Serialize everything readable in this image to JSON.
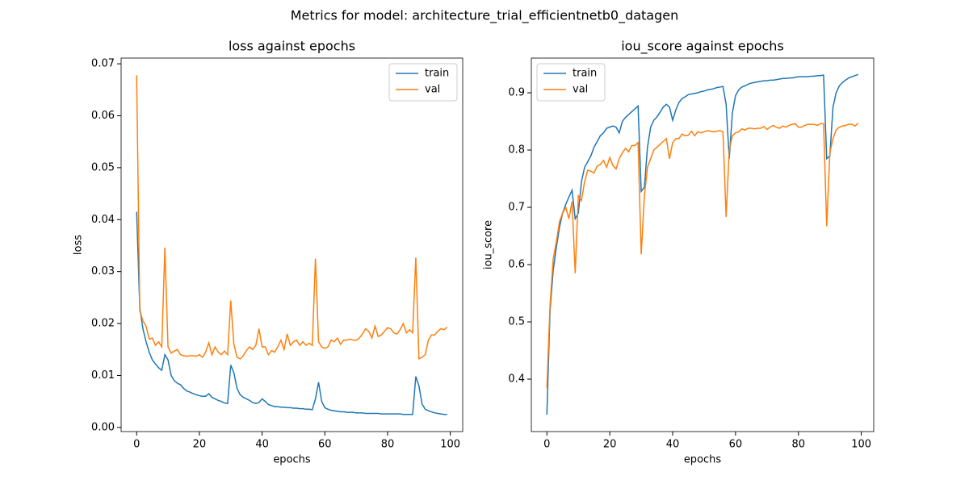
{
  "title": "Metrics for model: architecture_trial_efficientnetb0_datagen",
  "chart_data": [
    {
      "type": "line",
      "title": "loss against epochs",
      "xlabel": "epochs",
      "ylabel": "loss",
      "legend": "upper right",
      "x": [
        0,
        1,
        2,
        3,
        4,
        5,
        6,
        7,
        8,
        9,
        10,
        11,
        12,
        13,
        14,
        15,
        16,
        17,
        18,
        19,
        20,
        21,
        22,
        23,
        24,
        25,
        26,
        27,
        28,
        29,
        30,
        31,
        32,
        33,
        34,
        35,
        36,
        37,
        38,
        39,
        40,
        41,
        42,
        43,
        44,
        45,
        46,
        47,
        48,
        49,
        50,
        51,
        52,
        53,
        54,
        55,
        56,
        57,
        58,
        59,
        60,
        61,
        62,
        63,
        64,
        65,
        66,
        67,
        68,
        69,
        70,
        71,
        72,
        73,
        74,
        75,
        76,
        77,
        78,
        79,
        80,
        81,
        82,
        83,
        84,
        85,
        86,
        87,
        88,
        89,
        90,
        91,
        92,
        93,
        94,
        95,
        96,
        97,
        98,
        99
      ],
      "xlim": [
        -4.95,
        103.95
      ],
      "xticks": [
        0,
        20,
        40,
        60,
        80,
        100
      ],
      "ylim": [
        -0.0008,
        0.0711
      ],
      "yticks": [
        {
          "value": 0,
          "label": "0.00"
        },
        0.01,
        0.02,
        0.03,
        0.04,
        0.05,
        0.06,
        0.07
      ],
      "series": [
        {
          "name": "train",
          "color": "#1f77b4",
          "values": [
            0.0415,
            0.023,
            0.019,
            0.0165,
            0.0145,
            0.013,
            0.0122,
            0.0115,
            0.011,
            0.014,
            0.013,
            0.01,
            0.009,
            0.0085,
            0.0082,
            0.0075,
            0.007,
            0.0068,
            0.0065,
            0.0063,
            0.0061,
            0.006,
            0.006,
            0.0065,
            0.0058,
            0.0055,
            0.0052,
            0.005,
            0.0047,
            0.0046,
            0.012,
            0.0105,
            0.0075,
            0.0063,
            0.0058,
            0.0055,
            0.0052,
            0.0048,
            0.0046,
            0.0048,
            0.0055,
            0.005,
            0.0044,
            0.0042,
            0.004,
            0.004,
            0.0039,
            0.0039,
            0.0038,
            0.0038,
            0.0037,
            0.0037,
            0.0036,
            0.0036,
            0.0035,
            0.0035,
            0.0034,
            0.0055,
            0.0087,
            0.005,
            0.0038,
            0.0035,
            0.0033,
            0.0032,
            0.0031,
            0.003,
            0.003,
            0.0029,
            0.0029,
            0.0029,
            0.0028,
            0.0028,
            0.0028,
            0.0027,
            0.0027,
            0.0027,
            0.0027,
            0.0027,
            0.0026,
            0.0026,
            0.0026,
            0.0026,
            0.0026,
            0.0026,
            0.0026,
            0.0025,
            0.0025,
            0.0025,
            0.0025,
            0.0098,
            0.008,
            0.0045,
            0.0035,
            0.0032,
            0.003,
            0.0028,
            0.0027,
            0.0026,
            0.0025,
            0.0025
          ]
        },
        {
          "name": "val",
          "color": "#ff7f0e",
          "values": [
            0.0678,
            0.0225,
            0.0205,
            0.0195,
            0.017,
            0.0172,
            0.0158,
            0.0165,
            0.0155,
            0.0346,
            0.0155,
            0.0143,
            0.0147,
            0.015,
            0.014,
            0.0138,
            0.0137,
            0.0138,
            0.0138,
            0.0137,
            0.014,
            0.0135,
            0.0145,
            0.0163,
            0.014,
            0.0155,
            0.0145,
            0.014,
            0.0147,
            0.014,
            0.0244,
            0.016,
            0.0135,
            0.0132,
            0.0138,
            0.0148,
            0.0155,
            0.015,
            0.0158,
            0.019,
            0.0155,
            0.0155,
            0.014,
            0.0148,
            0.0145,
            0.0155,
            0.0168,
            0.015,
            0.018,
            0.0158,
            0.0165,
            0.0168,
            0.0158,
            0.0165,
            0.0158,
            0.0162,
            0.0158,
            0.0325,
            0.0165,
            0.0155,
            0.0152,
            0.0155,
            0.0168,
            0.0165,
            0.0172,
            0.016,
            0.0168,
            0.0168,
            0.017,
            0.0168,
            0.0168,
            0.0172,
            0.018,
            0.019,
            0.0185,
            0.0172,
            0.0195,
            0.0175,
            0.0178,
            0.0185,
            0.0192,
            0.019,
            0.0182,
            0.018,
            0.0188,
            0.02,
            0.0182,
            0.0188,
            0.0182,
            0.0327,
            0.0132,
            0.0135,
            0.014,
            0.0168,
            0.0178,
            0.0178,
            0.0185,
            0.019,
            0.0188,
            0.0193
          ]
        }
      ]
    },
    {
      "type": "line",
      "title": "iou_score against epochs",
      "xlabel": "epochs",
      "ylabel": "iou_score",
      "legend": "upper left",
      "x": [
        0,
        1,
        2,
        3,
        4,
        5,
        6,
        7,
        8,
        9,
        10,
        11,
        12,
        13,
        14,
        15,
        16,
        17,
        18,
        19,
        20,
        21,
        22,
        23,
        24,
        25,
        26,
        27,
        28,
        29,
        30,
        31,
        32,
        33,
        34,
        35,
        36,
        37,
        38,
        39,
        40,
        41,
        42,
        43,
        44,
        45,
        46,
        47,
        48,
        49,
        50,
        51,
        52,
        53,
        54,
        55,
        56,
        57,
        58,
        59,
        60,
        61,
        62,
        63,
        64,
        65,
        66,
        67,
        68,
        69,
        70,
        71,
        72,
        73,
        74,
        75,
        76,
        77,
        78,
        79,
        80,
        81,
        82,
        83,
        84,
        85,
        86,
        87,
        88,
        89,
        90,
        91,
        92,
        93,
        94,
        95,
        96,
        97,
        98,
        99
      ],
      "xlim": [
        -4.95,
        103.95
      ],
      "xticks": [
        0,
        20,
        40,
        60,
        80,
        100
      ],
      "ylim": [
        0.3085,
        0.9606
      ],
      "yticks": [
        0.4,
        0.5,
        0.6,
        0.7,
        0.8,
        0.9
      ],
      "series": [
        {
          "name": "train",
          "color": "#1f77b4",
          "values": [
            0.338,
            0.52,
            0.59,
            0.63,
            0.665,
            0.69,
            0.705,
            0.718,
            0.73,
            0.68,
            0.69,
            0.745,
            0.77,
            0.78,
            0.79,
            0.805,
            0.815,
            0.825,
            0.83,
            0.838,
            0.84,
            0.842,
            0.84,
            0.83,
            0.85,
            0.857,
            0.862,
            0.867,
            0.872,
            0.877,
            0.728,
            0.735,
            0.805,
            0.84,
            0.852,
            0.858,
            0.866,
            0.875,
            0.88,
            0.875,
            0.852,
            0.87,
            0.883,
            0.89,
            0.893,
            0.897,
            0.898,
            0.899,
            0.9,
            0.902,
            0.903,
            0.905,
            0.906,
            0.907,
            0.909,
            0.91,
            0.911,
            0.88,
            0.785,
            0.865,
            0.895,
            0.905,
            0.91,
            0.912,
            0.915,
            0.917,
            0.918,
            0.919,
            0.92,
            0.921,
            0.921,
            0.922,
            0.922,
            0.923,
            0.924,
            0.925,
            0.925,
            0.926,
            0.926,
            0.927,
            0.928,
            0.928,
            0.928,
            0.928,
            0.929,
            0.929,
            0.93,
            0.93,
            0.931,
            0.785,
            0.79,
            0.875,
            0.9,
            0.912,
            0.918,
            0.922,
            0.926,
            0.928,
            0.93,
            0.932
          ]
        },
        {
          "name": "val",
          "color": "#ff7f0e",
          "values": [
            0.385,
            0.53,
            0.61,
            0.64,
            0.675,
            0.69,
            0.7,
            0.68,
            0.71,
            0.585,
            0.72,
            0.712,
            0.745,
            0.765,
            0.763,
            0.76,
            0.772,
            0.775,
            0.782,
            0.77,
            0.787,
            0.773,
            0.767,
            0.785,
            0.795,
            0.803,
            0.797,
            0.808,
            0.808,
            0.813,
            0.618,
            0.72,
            0.77,
            0.785,
            0.8,
            0.805,
            0.81,
            0.815,
            0.82,
            0.785,
            0.813,
            0.82,
            0.82,
            0.828,
            0.825,
            0.826,
            0.833,
            0.825,
            0.832,
            0.83,
            0.832,
            0.834,
            0.833,
            0.832,
            0.833,
            0.834,
            0.832,
            0.683,
            0.8,
            0.825,
            0.83,
            0.832,
            0.837,
            0.835,
            0.838,
            0.838,
            0.837,
            0.838,
            0.838,
            0.841,
            0.836,
            0.84,
            0.843,
            0.84,
            0.838,
            0.842,
            0.84,
            0.843,
            0.845,
            0.846,
            0.84,
            0.84,
            0.843,
            0.845,
            0.845,
            0.845,
            0.843,
            0.846,
            0.846,
            0.667,
            0.795,
            0.82,
            0.835,
            0.84,
            0.842,
            0.843,
            0.845,
            0.845,
            0.842,
            0.847
          ]
        }
      ]
    }
  ]
}
